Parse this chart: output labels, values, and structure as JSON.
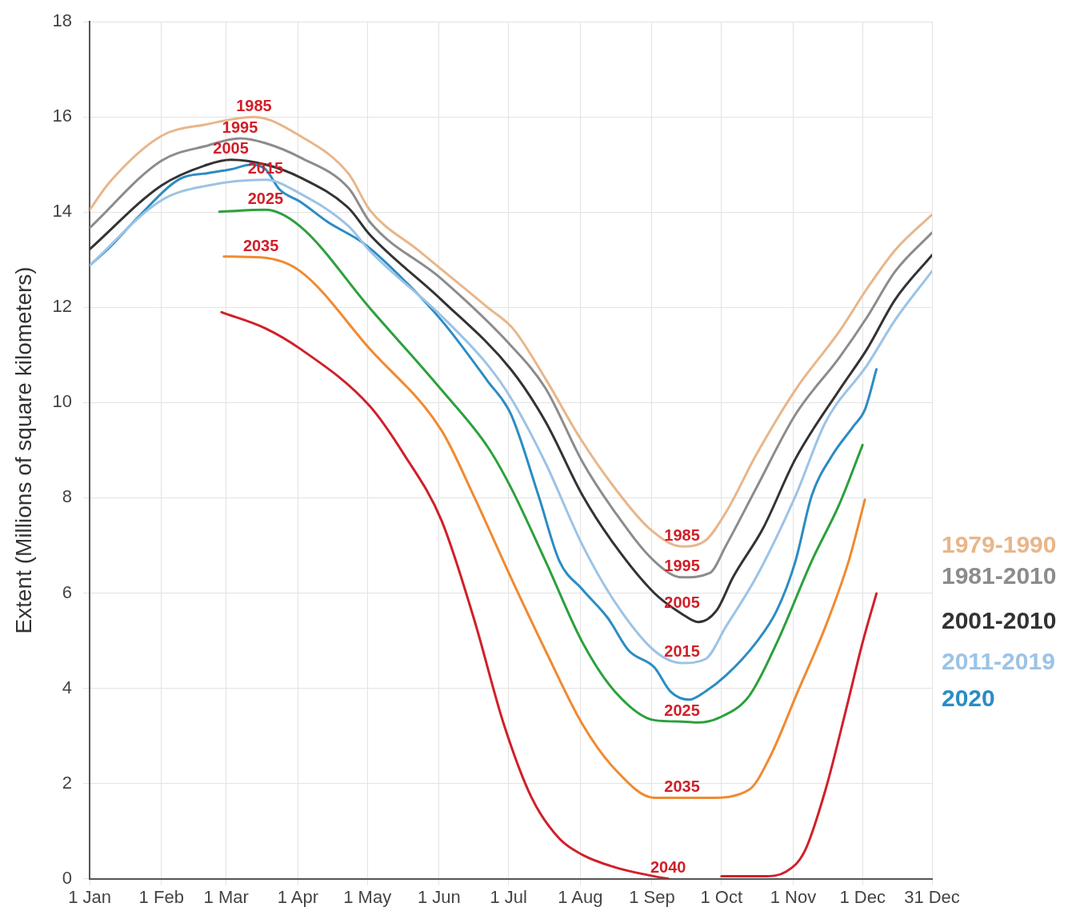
{
  "chart_data": {
    "type": "line",
    "ylabel": "Extent (Millions of square kilometers)",
    "xlim": [
      "--01-01",
      "--12-31"
    ],
    "xticks": [
      {
        "value": "--01-01",
        "label": "1 Jan"
      },
      {
        "value": "--02-01",
        "label": "1 Feb"
      },
      {
        "value": "--03-01",
        "label": "1 Mar"
      },
      {
        "value": "--04-01",
        "label": "1 Apr"
      },
      {
        "value": "--05-01",
        "label": "1 May"
      },
      {
        "value": "--06-01",
        "label": "1 Jun"
      },
      {
        "value": "--07-01",
        "label": "1 Jul"
      },
      {
        "value": "--08-01",
        "label": "1 Aug"
      },
      {
        "value": "--09-01",
        "label": "1 Sep"
      },
      {
        "value": "--10-01",
        "label": "1 Oct"
      },
      {
        "value": "--11-01",
        "label": "1 Nov"
      },
      {
        "value": "--12-01",
        "label": "1 Dec"
      },
      {
        "value": "--12-31",
        "label": "31 Dec"
      }
    ],
    "ylim": [
      0,
      18
    ],
    "yticks": [
      0,
      2,
      4,
      6,
      8,
      10,
      12,
      14,
      16,
      18
    ],
    "grid": true,
    "series": [
      {
        "name": "1979-1990",
        "color": "#e8b68a",
        "x": [
          "--01-01",
          "--01-10",
          "--02-01",
          "--02-21",
          "--03-13",
          "--04-02",
          "--04-23",
          "--05-02",
          "--05-23",
          "--06-07",
          "--06-22",
          "--07-03",
          "--07-17",
          "--08-01",
          "--08-16",
          "--08-31",
          "--09-14",
          "--09-24",
          "--10-03",
          "--10-16",
          "--11-02",
          "--11-21",
          "--12-03",
          "--12-15",
          "--12-31"
        ],
        "values": [
          14.05,
          14.65,
          15.6,
          15.85,
          16.0,
          15.6,
          14.8,
          14.05,
          13.2,
          12.6,
          12.0,
          11.55,
          10.5,
          9.25,
          8.2,
          7.35,
          6.98,
          7.1,
          7.7,
          8.9,
          10.27,
          11.5,
          12.4,
          13.2,
          13.95
        ]
      },
      {
        "name": "1981-2010",
        "color": "#8c8c8c",
        "x": [
          "--01-01",
          "--02-01",
          "--02-21",
          "--03-07",
          "--03-18",
          "--04-02",
          "--04-23",
          "--05-02",
          "--06-02",
          "--07-02",
          "--07-17",
          "--08-02",
          "--08-16",
          "--09-02",
          "--09-14",
          "--09-26",
          "--10-03",
          "--10-16",
          "--11-02",
          "--11-21",
          "--12-03",
          "--12-15",
          "--12-31"
        ],
        "values": [
          13.67,
          15.08,
          15.4,
          15.55,
          15.45,
          15.15,
          14.5,
          13.8,
          12.6,
          11.2,
          10.3,
          8.75,
          7.7,
          6.67,
          6.33,
          6.42,
          7.0,
          8.2,
          9.75,
          10.95,
          11.8,
          12.75,
          13.57
        ]
      },
      {
        "name": "2001-2010",
        "color": "#333333",
        "x": [
          "--01-01",
          "--02-01",
          "--02-21",
          "--03-03",
          "--03-18",
          "--04-02",
          "--04-23",
          "--05-02",
          "--06-02",
          "--07-02",
          "--07-17",
          "--08-02",
          "--08-16",
          "--09-02",
          "--09-14",
          "--09-21",
          "--09-29",
          "--10-06",
          "--10-19",
          "--11-02",
          "--11-21",
          "--12-03",
          "--12-15",
          "--12-31"
        ],
        "values": [
          13.22,
          14.56,
          15.0,
          15.1,
          15.0,
          14.73,
          14.08,
          13.53,
          12.16,
          10.7,
          9.6,
          8.05,
          7.0,
          6.0,
          5.56,
          5.39,
          5.64,
          6.33,
          7.36,
          8.82,
          10.27,
          11.13,
          12.16,
          13.1
        ]
      },
      {
        "name": "2011-2019",
        "color": "#9cc3e6",
        "x": [
          "--01-01",
          "--02-01",
          "--02-21",
          "--03-18",
          "--04-02",
          "--04-23",
          "--05-02",
          "--06-02",
          "--06-22",
          "--07-02",
          "--07-17",
          "--08-02",
          "--08-16",
          "--09-02",
          "--09-14",
          "--09-24",
          "--10-03",
          "--10-16",
          "--11-02",
          "--11-15",
          "--12-03",
          "--12-15",
          "--12-31"
        ],
        "values": [
          12.88,
          14.25,
          14.56,
          14.68,
          14.39,
          13.7,
          13.19,
          11.82,
          10.79,
          10.1,
          8.73,
          7.0,
          5.81,
          4.79,
          4.53,
          4.61,
          5.3,
          6.33,
          8.04,
          9.59,
          10.79,
          11.73,
          12.76
        ]
      },
      {
        "name": "2020",
        "color": "#2b8cc4",
        "x": [
          "--01-01",
          "--01-10",
          "--01-22",
          "--02-09",
          "--02-21",
          "--03-03",
          "--03-12",
          "--03-18",
          "--03-24",
          "--04-02",
          "--04-14",
          "--04-29",
          "--05-11",
          "--06-02",
          "--06-22",
          "--07-02",
          "--07-14",
          "--07-23",
          "--08-02",
          "--08-13",
          "--08-22",
          "--09-02",
          "--09-09",
          "--09-17",
          "--09-24",
          "--10-03",
          "--10-16",
          "--10-25",
          "--11-02",
          "--11-09",
          "--11-18",
          "--11-27",
          "--12-02",
          "--12-07"
        ],
        "values": [
          12.88,
          13.28,
          13.9,
          14.7,
          14.82,
          14.9,
          15.0,
          14.9,
          14.48,
          14.22,
          13.79,
          13.36,
          12.85,
          11.73,
          10.45,
          9.76,
          8.04,
          6.67,
          6.07,
          5.47,
          4.79,
          4.44,
          3.93,
          3.76,
          3.93,
          4.27,
          4.96,
          5.64,
          6.67,
          8.04,
          8.9,
          9.5,
          9.85,
          10.7
        ]
      },
      {
        "color": "#2ca03c",
        "x": [
          "--02-26",
          "--03-18",
          "--04-02",
          "--05-02",
          "--06-02",
          "--06-22",
          "--07-02",
          "--07-17",
          "--08-02",
          "--08-16",
          "--09-02",
          "--09-14",
          "--09-21",
          "--09-30",
          "--10-13",
          "--10-25",
          "--11-09",
          "--11-21",
          "--12-01"
        ],
        "values": [
          14.01,
          14.05,
          13.7,
          11.99,
          10.27,
          9.07,
          8.22,
          6.67,
          4.96,
          3.93,
          3.33,
          3.3,
          3.28,
          3.38,
          3.84,
          4.96,
          6.67,
          7.87,
          9.11
        ]
      },
      {
        "color": "#f08a30",
        "x": [
          "--02-28",
          "--03-16",
          "--04-02",
          "--05-02",
          "--06-02",
          "--06-16",
          "--07-02",
          "--07-17",
          "--08-02",
          "--08-16",
          "--09-02",
          "--09-14",
          "--09-26",
          "--10-13",
          "--10-22",
          "--11-03",
          "--11-15",
          "--11-25",
          "--12-02"
        ],
        "values": [
          13.07,
          13.05,
          12.76,
          11.13,
          9.42,
          8.04,
          6.33,
          4.79,
          3.24,
          2.3,
          1.7,
          1.7,
          1.7,
          1.87,
          2.56,
          3.93,
          5.3,
          6.67,
          7.96
        ]
      },
      {
        "color": "#d0202a",
        "x": [
          "--02-27",
          "--03-18",
          "--04-02",
          "--05-02",
          "--05-17",
          "--06-02",
          "--06-16",
          "--06-29",
          "--07-11",
          "--07-23",
          "--08-02",
          "--08-16",
          "--09-02",
          "--09-08",
          "--09-20",
          "--10-01",
          "--10-19",
          "--10-29",
          "--11-06",
          "--11-15",
          "--11-24",
          "--12-01",
          "--12-07"
        ],
        "values": [
          11.9,
          11.56,
          11.13,
          9.93,
          8.9,
          7.53,
          5.47,
          3.24,
          1.7,
          0.84,
          0.5,
          0.24,
          0.05,
          0,
          null,
          0.05,
          0.05,
          0.15,
          0.58,
          1.87,
          3.58,
          4.96,
          5.99
        ]
      }
    ],
    "annotations": [
      {
        "text": "1985",
        "x": "--03-13",
        "y": 16.0
      },
      {
        "text": "1995",
        "x": "--03-07",
        "y": 15.55
      },
      {
        "text": "2005",
        "x": "--03-03",
        "y": 15.1
      },
      {
        "text": "2015",
        "x": "--03-18",
        "y": 14.68
      },
      {
        "text": "2025",
        "x": "--03-18",
        "y": 14.05
      },
      {
        "text": "2035",
        "x": "--03-16",
        "y": 13.05
      },
      {
        "text": "1985",
        "x": "--09-14",
        "y": 6.98
      },
      {
        "text": "1995",
        "x": "--09-14",
        "y": 6.33
      },
      {
        "text": "2005",
        "x": "--09-14",
        "y": 5.56
      },
      {
        "text": "2015",
        "x": "--09-14",
        "y": 4.53
      },
      {
        "text": "2025",
        "x": "--09-14",
        "y": 3.3
      },
      {
        "text": "2035",
        "x": "--09-14",
        "y": 1.7
      },
      {
        "text": "2040",
        "x": "--09-08",
        "y": 0
      }
    ]
  }
}
